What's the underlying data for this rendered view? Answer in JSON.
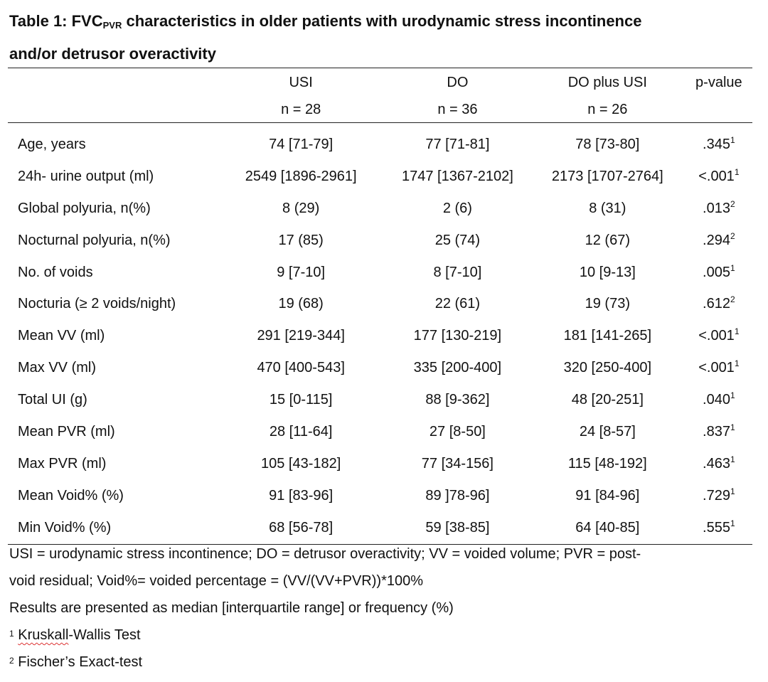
{
  "title": {
    "prefix": "Table 1: FVC",
    "subscript": "PVR",
    "suffix": " characteristics in older patients with urodynamic stress incontinence",
    "line2": "and/or detrusor overactivity"
  },
  "columns": [
    {
      "name": "",
      "n": ""
    },
    {
      "name": "USI",
      "n": "n = 28"
    },
    {
      "name": "DO",
      "n": "n = 36"
    },
    {
      "name": "DO plus USI",
      "n": "n = 26"
    },
    {
      "name": "p-value",
      "n": ""
    }
  ],
  "rows": [
    {
      "label": "Age, years",
      "usi": "74 [71-79]",
      "do": "77 [71-81]",
      "do_usi": "78 [73-80]",
      "p": ".345",
      "p_note": "1"
    },
    {
      "label": "24h- urine output (ml)",
      "usi": "2549 [1896-2961]",
      "do": "1747 [1367-2102]",
      "do_usi": "2173 [1707-2764]",
      "p": "<.001",
      "p_note": "1"
    },
    {
      "label": "Global polyuria, n(%)",
      "usi": "8 (29)",
      "do": "2 (6)",
      "do_usi": "8 (31)",
      "p": ".013",
      "p_note": "2"
    },
    {
      "label": "Nocturnal polyuria, n(%)",
      "usi": "17 (85)",
      "do": "25 (74)",
      "do_usi": "12 (67)",
      "p": ".294",
      "p_note": "2"
    },
    {
      "label": "No. of voids",
      "usi": "9 [7-10]",
      "do": "8 [7-10]",
      "do_usi": "10 [9-13]",
      "p": ".005",
      "p_note": "1"
    },
    {
      "label": "Nocturia (≥ 2 voids/night)",
      "usi": "19 (68)",
      "do": "22 (61)",
      "do_usi": "19 (73)",
      "p": ".612",
      "p_note": "2"
    },
    {
      "label": "Mean VV (ml)",
      "usi": "291 [219-344]",
      "do": "177 [130-219]",
      "do_usi": "181 [141-265]",
      "p": "<.001",
      "p_note": "1"
    },
    {
      "label": "Max VV (ml)",
      "usi": "470 [400-543]",
      "do": "335 [200-400]",
      "do_usi": "320 [250-400]",
      "p": "<.001",
      "p_note": "1"
    },
    {
      "label": "Total UI (g)",
      "usi": "15 [0-115]",
      "do": "88 [9-362]",
      "do_usi": "48 [20-251]",
      "p": ".040",
      "p_note": "1"
    },
    {
      "label": "Mean PVR (ml)",
      "usi": "28 [11-64]",
      "do": "27 [8-50]",
      "do_usi": "24 [8-57]",
      "p": ".837",
      "p_note": "1"
    },
    {
      "label": "Max PVR (ml)",
      "usi": "105 [43-182]",
      "do": "77 [34-156]",
      "do_usi": "115 [48-192]",
      "p": ".463",
      "p_note": "1"
    },
    {
      "label": "Mean Void% (%)",
      "usi": "91 [83-96]",
      "do": "89 ]78-96]",
      "do_usi": "91 [84-96]",
      "p": ".729",
      "p_note": "1"
    },
    {
      "label": "Min Void% (%)",
      "usi": "68 [56-78]",
      "do": "59 [38-85]",
      "do_usi": "64 [40-85]",
      "p": ".555",
      "p_note": "1"
    }
  ],
  "footnotes": {
    "abbrev_line1": "USI = urodynamic stress incontinence; DO = detrusor overactivity; VV = voided volume; PVR = post-",
    "abbrev_line2": "void residual;  Void%= voided percentage = (VV/(VV+PVR))*100%",
    "results_note": "Results are presented as median [interquartile range] or frequency (%)",
    "note1_marker": "1",
    "note1_word": "Kruskall",
    "note1_rest": "-Wallis Test",
    "note2_marker": "2",
    "note2_text": "Fischer’s Exact-test"
  }
}
